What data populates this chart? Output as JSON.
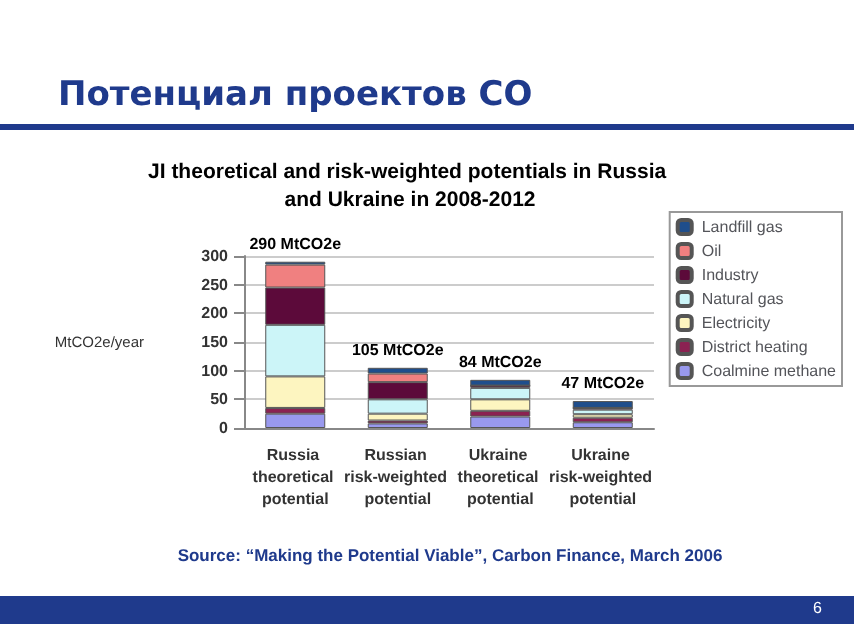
{
  "chart_data": {
    "type": "bar",
    "stacked": true,
    "title": "Потенциал проектов CO",
    "subtitle": "JI theoretical and risk-weighted potentials in Russia and Ukraine in 2008-2012",
    "ylabel": "MtCO2e/year",
    "categories": [
      "Russia theoretical potential",
      "Russian risk-weighted potential",
      "Ukraine theoretical potential",
      "Ukraine risk-weighted potential"
    ],
    "series": [
      {
        "name": "Coalmine methane",
        "color": "#9999ee",
        "values": [
          25,
          8,
          20,
          10
        ]
      },
      {
        "name": "District heating",
        "color": "#8b2252",
        "values": [
          10,
          5,
          10,
          8
        ]
      },
      {
        "name": "Electricity",
        "color": "#fdf5c0",
        "values": [
          55,
          12,
          20,
          6
        ]
      },
      {
        "name": "Natural gas",
        "color": "#ccf5f8",
        "values": [
          90,
          25,
          20,
          8
        ]
      },
      {
        "name": "Industry",
        "color": "#5c0a3a",
        "values": [
          65,
          30,
          4,
          3
        ]
      },
      {
        "name": "Oil",
        "color": "#f08080",
        "values": [
          40,
          15,
          0,
          0
        ]
      },
      {
        "name": "Landfill gas",
        "color": "#1f4e8c",
        "values": [
          5,
          10,
          10,
          12
        ]
      }
    ],
    "totals": [
      "290 MtCO2e",
      "105 MtCO2e",
      "84 MtCO2e",
      "47 MtCO2e"
    ],
    "ylim": [
      0,
      300
    ],
    "yticks": [
      0,
      50,
      100,
      150,
      200,
      250,
      300
    ],
    "grid": "y",
    "legend": "top right",
    "annotations": [
      "Source: “Making the Potential Viable”, Carbon Finance, March 2006",
      "6"
    ]
  }
}
